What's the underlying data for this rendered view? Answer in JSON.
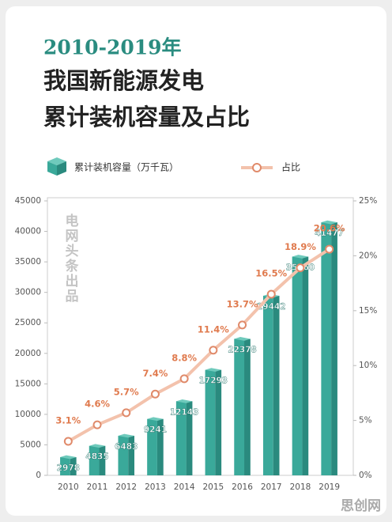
{
  "chart_data": {
    "type": "bar-line",
    "title": "2010-2019年",
    "subtitle": [
      "我国新能源发电",
      "累计装机容量及占比"
    ],
    "categories": [
      "2010",
      "2011",
      "2012",
      "2013",
      "2014",
      "2015",
      "2016",
      "2017",
      "2018",
      "2019"
    ],
    "series": [
      {
        "name": "累计装机容量（万千瓦）",
        "type": "bar",
        "color": "#3aa99a",
        "values": [
          2978,
          4835,
          6483,
          9241,
          12143,
          17293,
          22378,
          29442,
          35860,
          41477
        ]
      },
      {
        "name": "占比",
        "type": "line",
        "axis": "y2",
        "color": "#e08a6a",
        "values": [
          3.1,
          4.6,
          5.7,
          7.4,
          8.8,
          11.4,
          13.7,
          16.5,
          18.9,
          20.6
        ],
        "value_labels": [
          "3.1%",
          "4.6%",
          "5.7%",
          "7.4%",
          "8.8%",
          "11.4%",
          "13.7%",
          "16.5%",
          "18.9%",
          "20.6%"
        ]
      }
    ],
    "ylim": [
      0,
      45000
    ],
    "yticks": [
      0,
      5000,
      10000,
      15000,
      20000,
      25000,
      30000,
      35000,
      40000,
      45000
    ],
    "y2lim": [
      0,
      25
    ],
    "y2ticks": [
      {
        "value": 0,
        "label": "0%"
      },
      {
        "value": 5,
        "label": "5%"
      },
      {
        "value": 10,
        "label": "10%"
      },
      {
        "value": 15,
        "label": "15%"
      },
      {
        "value": 20,
        "label": "20%"
      },
      {
        "value": 25,
        "label": "25%"
      }
    ],
    "watermark": "电网头条出品",
    "site_mark": "思创网"
  }
}
